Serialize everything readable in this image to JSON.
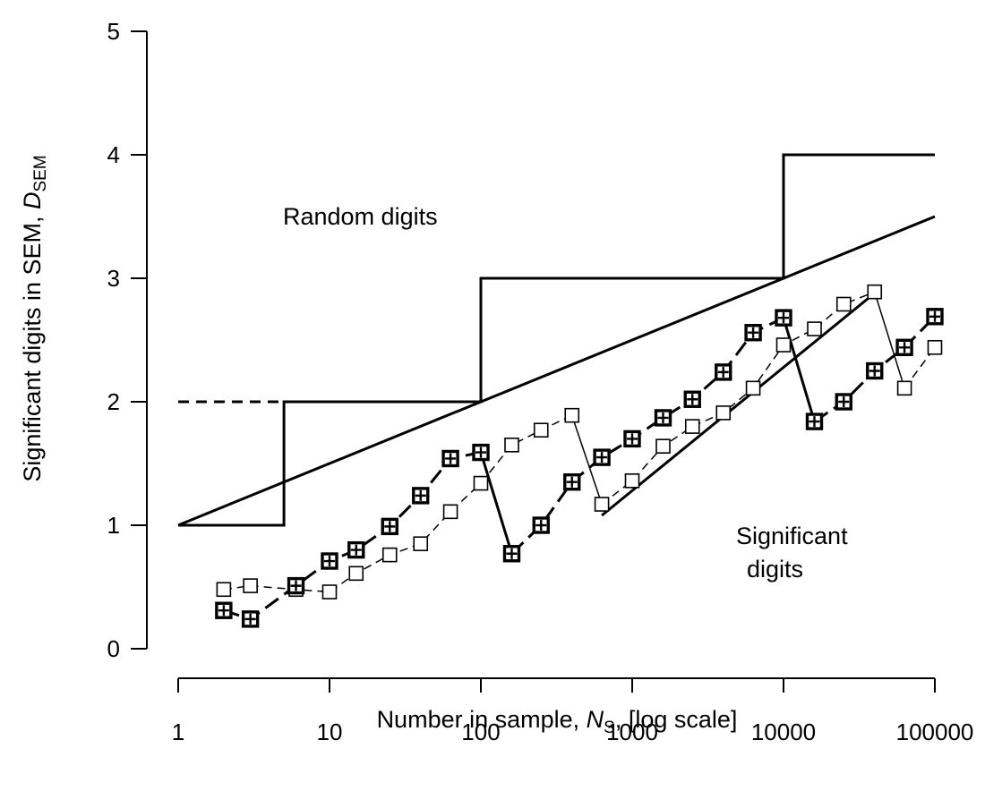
{
  "chart_data": {
    "type": "line",
    "x_scale": "log",
    "x_ticks": [
      1,
      10,
      100,
      1000,
      10000,
      100000
    ],
    "x_tick_labels": [
      "1",
      "10",
      "100",
      "1000",
      "10000",
      "100000"
    ],
    "y_ticks": [
      0,
      1,
      2,
      3,
      4,
      5
    ],
    "y_tick_labels": [
      "0",
      "1",
      "2",
      "3",
      "4",
      "5"
    ],
    "xlim": [
      1,
      100000
    ],
    "ylim": [
      0,
      5
    ],
    "xlabel": {
      "prefix": "Number in sample, ",
      "symbol": "N",
      "subscript": "S",
      "suffix": ", [log scale]"
    },
    "ylabel": {
      "prefix": "Significant digits in SEM, ",
      "symbol": "D",
      "subscript": "SEM"
    },
    "annotations": {
      "random_digits": "Random digits",
      "significant_line1": "Significant",
      "significant_line2": "digits"
    },
    "step_series": [
      [
        5,
        1
      ],
      [
        5,
        2
      ],
      [
        100,
        2
      ],
      [
        100,
        3
      ],
      [
        10000,
        3
      ],
      [
        10000,
        4
      ],
      [
        100000,
        4
      ]
    ],
    "step_start": [
      1,
      1
    ],
    "dashed_segment": [
      [
        1,
        2
      ],
      [
        5,
        2
      ]
    ],
    "diagonal_line": [
      [
        1,
        1
      ],
      [
        100000,
        3.5
      ]
    ],
    "fit_line": [
      [
        630,
        1.08
      ],
      [
        40000,
        2.88
      ]
    ],
    "filled_series": [
      [
        [
          2,
          0.31
        ],
        [
          3,
          0.24
        ],
        [
          6,
          0.51
        ],
        [
          10,
          0.71
        ],
        [
          15,
          0.8
        ],
        [
          25,
          0.99
        ],
        [
          40,
          1.24
        ],
        [
          63,
          1.54
        ],
        [
          100,
          1.59
        ]
      ],
      [
        [
          160,
          0.77
        ],
        [
          250,
          1.0
        ],
        [
          400,
          1.35
        ],
        [
          630,
          1.55
        ],
        [
          1000,
          1.7
        ],
        [
          1600,
          1.87
        ],
        [
          2500,
          2.02
        ],
        [
          4000,
          2.24
        ],
        [
          6300,
          2.56
        ],
        [
          10000,
          2.68
        ]
      ],
      [
        [
          16000,
          1.84
        ],
        [
          25000,
          2.0
        ],
        [
          40000,
          2.25
        ],
        [
          63000,
          2.44
        ],
        [
          100000,
          2.69
        ]
      ]
    ],
    "open_series": [
      [
        [
          2,
          0.48
        ],
        [
          3,
          0.51
        ],
        [
          6,
          0.48
        ],
        [
          10,
          0.46
        ],
        [
          15,
          0.61
        ],
        [
          25,
          0.76
        ],
        [
          40,
          0.85
        ],
        [
          63,
          1.11
        ],
        [
          100,
          1.34
        ],
        [
          160,
          1.65
        ],
        [
          250,
          1.77
        ],
        [
          400,
          1.89
        ]
      ],
      [
        [
          630,
          1.17
        ],
        [
          1000,
          1.36
        ],
        [
          1600,
          1.64
        ],
        [
          2500,
          1.8
        ],
        [
          4000,
          1.91
        ],
        [
          6300,
          2.11
        ],
        [
          10000,
          2.46
        ],
        [
          16000,
          2.59
        ],
        [
          25000,
          2.79
        ],
        [
          40000,
          2.89
        ]
      ],
      [
        [
          63000,
          2.11
        ],
        [
          100000,
          2.44
        ]
      ]
    ],
    "jumps_filled": [
      [
        [
          100,
          1.59
        ],
        [
          160,
          0.77
        ]
      ],
      [
        [
          10000,
          2.68
        ],
        [
          16000,
          1.84
        ]
      ]
    ],
    "jumps_open": [
      [
        [
          400,
          1.89
        ],
        [
          630,
          1.17
        ]
      ],
      [
        [
          40000,
          2.89
        ],
        [
          63000,
          2.11
        ]
      ]
    ],
    "grid": false,
    "legend": "none"
  }
}
